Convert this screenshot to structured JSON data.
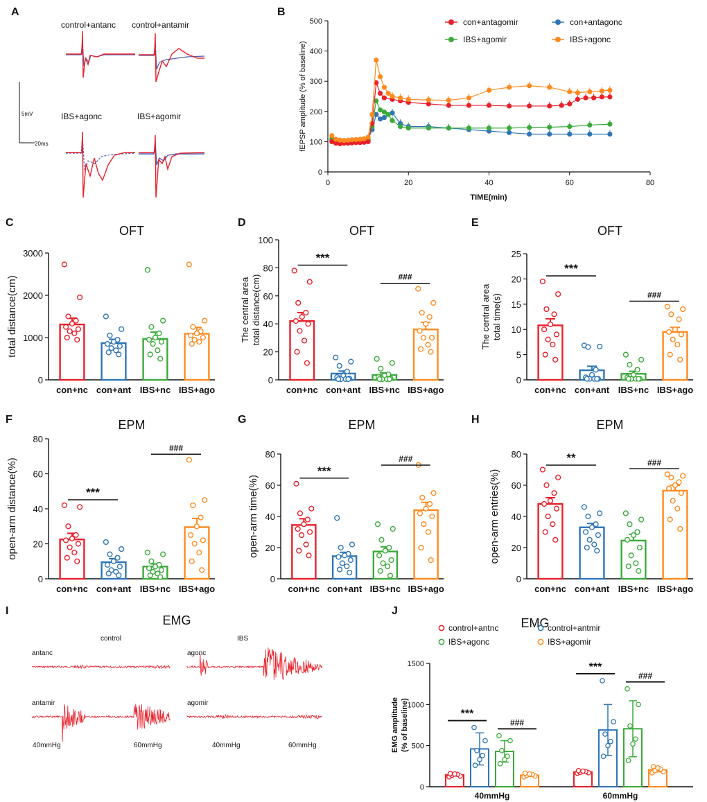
{
  "colors": {
    "red": "#e8202a",
    "blue": "#2e75b6",
    "green": "#3aaa3a",
    "orange": "#ff8a1f",
    "black": "#111111",
    "trace_blue": "#4a5fb5"
  },
  "panel_labels": [
    "A",
    "B",
    "C",
    "D",
    "E",
    "F",
    "G",
    "H",
    "I",
    "J"
  ],
  "panel_a": {
    "labels": [
      "control+antanc",
      "control+antamir",
      "IBS+agonc",
      "IBS+agomir"
    ],
    "scalebar_v": "5mV",
    "scalebar_h": "20ms"
  },
  "panel_i": {
    "title": "EMG",
    "group_labels": [
      "control",
      "IBS"
    ],
    "trace_labels": [
      "antanc",
      "antamir",
      "agonc",
      "agomir"
    ],
    "pressure_labels": [
      "40mmHg",
      "60mmHg",
      "40mmHg",
      "60mmHg"
    ]
  },
  "chart_data": [
    {
      "id": "B",
      "type": "line",
      "title": "",
      "xlabel": "TIME(min)",
      "ylabel": "fEPSP amplitude (% of baseline)",
      "xlim": [
        0,
        80
      ],
      "ylim": [
        0,
        500
      ],
      "xticks": [
        0,
        20,
        40,
        60,
        80
      ],
      "yticks": [
        0,
        100,
        200,
        300,
        400,
        500
      ],
      "legend": [
        "con+antagomir",
        "con+antagonc",
        "IBS+agomir",
        "IBS+agonc"
      ],
      "series": [
        {
          "name": "con+antagomir",
          "color": "red",
          "x": [
            1,
            2,
            3,
            4,
            5,
            6,
            7,
            8,
            9,
            10,
            11,
            12,
            13,
            14,
            16,
            18,
            20,
            25,
            30,
            35,
            40,
            45,
            50,
            55,
            58,
            60,
            62,
            64,
            66,
            68,
            70
          ],
          "y": [
            100,
            95,
            93,
            95,
            95,
            96,
            97,
            97,
            98,
            100,
            160,
            295,
            260,
            245,
            240,
            235,
            230,
            225,
            220,
            220,
            220,
            218,
            218,
            218,
            220,
            225,
            240,
            245,
            245,
            248,
            248
          ]
        },
        {
          "name": "con+antagonc",
          "color": "blue",
          "x": [
            1,
            2,
            3,
            4,
            5,
            6,
            7,
            8,
            9,
            10,
            11,
            12,
            13,
            14,
            15,
            16,
            18,
            20,
            25,
            30,
            35,
            40,
            45,
            50,
            55,
            60,
            65,
            70
          ],
          "y": [
            105,
            100,
            100,
            100,
            102,
            103,
            103,
            103,
            105,
            107,
            140,
            190,
            175,
            180,
            190,
            195,
            160,
            150,
            150,
            145,
            140,
            135,
            130,
            125,
            125,
            125,
            125,
            125
          ]
        },
        {
          "name": "IBS+agomir",
          "color": "green",
          "x": [
            1,
            2,
            3,
            4,
            5,
            6,
            7,
            8,
            9,
            10,
            11,
            12,
            13,
            14,
            15,
            16,
            18,
            20,
            25,
            30,
            35,
            40,
            45,
            50,
            55,
            60,
            65,
            70
          ],
          "y": [
            110,
            105,
            103,
            103,
            104,
            104,
            104,
            104,
            104,
            105,
            150,
            235,
            205,
            198,
            190,
            170,
            150,
            145,
            145,
            145,
            145,
            145,
            145,
            147,
            148,
            150,
            155,
            158
          ]
        },
        {
          "name": "IBS+agonc",
          "color": "orange",
          "x": [
            1,
            2,
            3,
            4,
            5,
            6,
            7,
            8,
            9,
            10,
            11,
            12,
            13,
            14,
            15,
            16,
            18,
            20,
            25,
            30,
            35,
            40,
            45,
            50,
            55,
            60,
            62,
            65,
            68,
            70
          ],
          "y": [
            120,
            108,
            105,
            104,
            105,
            106,
            107,
            108,
            110,
            115,
            190,
            370,
            315,
            280,
            260,
            250,
            245,
            240,
            238,
            237,
            245,
            270,
            280,
            285,
            280,
            265,
            262,
            265,
            268,
            270
          ]
        }
      ]
    },
    {
      "id": "C",
      "type": "bar",
      "title": "OFT",
      "ylabel": "total distance(cm)",
      "ylim": [
        0,
        3000
      ],
      "yticks": [
        0,
        1000,
        2000,
        3000
      ],
      "categories": [
        "con+nc",
        "con+ant",
        "IBS+nc",
        "IBS+ago"
      ],
      "values": [
        1310,
        870,
        970,
        1090
      ],
      "errors": [
        150,
        90,
        160,
        150
      ],
      "points": [
        [
          2730,
          1950,
          1500,
          1400,
          1330,
          1250,
          1200,
          1150,
          1100,
          1000,
          950
        ],
        [
          1500,
          1200,
          1050,
          950,
          900,
          850,
          800,
          750,
          700,
          650,
          600
        ],
        [
          2600,
          1400,
          1250,
          1100,
          1000,
          950,
          900,
          850,
          700,
          600,
          500
        ],
        [
          2730,
          1400,
          1250,
          1150,
          1100,
          1050,
          1000,
          950,
          900,
          850
        ]
      ],
      "annotations": []
    },
    {
      "id": "D",
      "type": "bar",
      "title": "OFT",
      "ylabel": "The central area total distance(cm)",
      "ylim": [
        0,
        100
      ],
      "yticks": [
        0,
        20,
        40,
        60,
        80,
        100
      ],
      "categories": [
        "con+nc",
        "con+ant",
        "IBS+nc",
        "IBS+ago"
      ],
      "values": [
        42,
        4.5,
        3.5,
        36
      ],
      "errors": [
        6,
        1.8,
        1.5,
        5
      ],
      "points": [
        [
          78,
          70,
          55,
          48,
          45,
          42,
          40,
          35,
          28,
          20,
          12
        ],
        [
          16,
          13,
          10,
          6,
          3,
          2,
          1,
          0.5,
          0.5,
          0.5,
          0.5
        ],
        [
          15,
          12,
          8,
          4,
          3,
          2,
          1,
          0.5,
          0.5,
          0.5,
          0.5
        ],
        [
          65,
          55,
          48,
          45,
          40,
          35,
          30,
          30,
          25,
          22,
          20
        ]
      ],
      "annotations": [
        {
          "from": 0,
          "to": 1,
          "text": "***"
        },
        {
          "from": 2,
          "to": 3,
          "text": "###"
        }
      ]
    },
    {
      "id": "E",
      "type": "bar",
      "title": "OFT",
      "ylabel": "The central area total time(s)",
      "ylim": [
        0,
        25
      ],
      "yticks": [
        0,
        5,
        10,
        15,
        20,
        25
      ],
      "categories": [
        "con+nc",
        "con+ant",
        "IBS+nc",
        "IBS+ago"
      ],
      "values": [
        10.8,
        1.9,
        1.2,
        9.5
      ],
      "errors": [
        1.3,
        0.8,
        0.5,
        0.9
      ],
      "points": [
        [
          19.5,
          17,
          14,
          13,
          11,
          10,
          9,
          8,
          7,
          5,
          4
        ],
        [
          6.8,
          6.6,
          6.5,
          2,
          1,
          0.5,
          0.2,
          0.2,
          0.2,
          0.2,
          0.2
        ],
        [
          5,
          4,
          3,
          2,
          1,
          0.5,
          0.2,
          0.2,
          0.2,
          0.2,
          0.2
        ],
        [
          14.5,
          14,
          13,
          12,
          10,
          9.5,
          9,
          8,
          7,
          5,
          4
        ]
      ],
      "annotations": [
        {
          "from": 0,
          "to": 1,
          "text": "***"
        },
        {
          "from": 2,
          "to": 3,
          "text": "###"
        }
      ]
    },
    {
      "id": "F",
      "type": "bar",
      "title": "EPM",
      "ylabel": "open-arm distance(%)",
      "ylim": [
        0,
        80
      ],
      "yticks": [
        0,
        20,
        40,
        60,
        80
      ],
      "categories": [
        "con+nc",
        "con+ant",
        "IBS+nc",
        "IBS+ago"
      ],
      "values": [
        22.5,
        9.5,
        7,
        29.5
      ],
      "errors": [
        3.5,
        2,
        1.5,
        5
      ],
      "points": [
        [
          42,
          41,
          30,
          25,
          23,
          22,
          20,
          18,
          15,
          12,
          10
        ],
        [
          21,
          17,
          14,
          12,
          10,
          8,
          7,
          5,
          4,
          3,
          2
        ],
        [
          15,
          14,
          10,
          8,
          7,
          6,
          5,
          4,
          3,
          2,
          1
        ],
        [
          68,
          45,
          42,
          35,
          30,
          25,
          22,
          20,
          15,
          10,
          5
        ]
      ],
      "annotations": [
        {
          "from": 0,
          "to": 1,
          "text": "***"
        },
        {
          "from": 2,
          "to": 3,
          "text": "###"
        }
      ]
    },
    {
      "id": "G",
      "type": "bar",
      "title": "EPM",
      "ylabel": "open-arm time(%)",
      "ylim": [
        0,
        80
      ],
      "yticks": [
        0,
        20,
        40,
        60,
        80
      ],
      "categories": [
        "con+nc",
        "con+ant",
        "IBS+nc",
        "IBS+ago"
      ],
      "values": [
        34.5,
        14.5,
        17.5,
        44
      ],
      "errors": [
        4,
        2.5,
        3,
        5
      ],
      "points": [
        [
          61,
          45,
          42,
          38,
          35,
          32,
          30,
          28,
          22,
          18,
          15
        ],
        [
          39,
          22,
          20,
          16,
          15,
          14,
          12,
          10,
          8,
          6,
          4
        ],
        [
          35,
          32,
          25,
          20,
          18,
          15,
          12,
          10,
          8,
          5,
          2
        ],
        [
          73,
          55,
          52,
          48,
          45,
          42,
          40,
          35,
          30,
          20,
          12
        ]
      ],
      "annotations": [
        {
          "from": 0,
          "to": 1,
          "text": "***"
        },
        {
          "from": 2,
          "to": 3,
          "text": "###"
        }
      ]
    },
    {
      "id": "H",
      "type": "bar",
      "title": "EPM",
      "ylabel": "open-arm entries(%)",
      "ylim": [
        0,
        80
      ],
      "yticks": [
        0,
        20,
        40,
        60,
        80
      ],
      "categories": [
        "con+nc",
        "con+ant",
        "IBS+nc",
        "IBS+ago"
      ],
      "values": [
        48,
        33,
        24.5,
        56.5
      ],
      "errors": [
        4,
        2.5,
        4,
        3.5
      ],
      "points": [
        [
          70,
          65,
          60,
          55,
          50,
          48,
          45,
          40,
          35,
          30,
          25
        ],
        [
          46,
          42,
          40,
          35,
          33,
          30,
          28,
          25,
          22,
          20,
          18
        ],
        [
          42,
          38,
          35,
          30,
          28,
          25,
          20,
          15,
          10,
          8,
          5
        ],
        [
          67,
          66,
          65,
          62,
          60,
          58,
          55,
          50,
          45,
          38,
          32
        ]
      ],
      "annotations": [
        {
          "from": 0,
          "to": 1,
          "text": "**"
        },
        {
          "from": 2,
          "to": 3,
          "text": "###"
        }
      ]
    },
    {
      "id": "J",
      "type": "bar",
      "title": "EMG",
      "ylabel": "EMG amplitude (% of baseline)",
      "ylim": [
        0,
        1500
      ],
      "yticks": [
        0,
        500,
        1000,
        1500
      ],
      "categories": [
        "40mmHg",
        "60mmHg"
      ],
      "legend": [
        "control+antnc",
        "control+antmir",
        "IBS+agonc",
        "IBS+agomir"
      ],
      "series": [
        {
          "name": "control+antnc",
          "color": "red",
          "values": [
            145,
            180
          ],
          "errors": [
            15,
            15
          ],
          "points": [
            [
              120,
              130,
              140,
              150,
              155,
              160
            ],
            [
              165,
              170,
              175,
              185,
              190,
              195
            ]
          ]
        },
        {
          "name": "control+antmir",
          "color": "blue",
          "values": [
            460,
            690
          ],
          "errors": [
            195,
            310
          ],
          "points": [
            [
              720,
              560,
              440,
              380,
              330,
              260
            ],
            [
              1290,
              790,
              640,
              550,
              500,
              370
            ]
          ]
        },
        {
          "name": "IBS+agonc",
          "color": "green",
          "values": [
            430,
            705
          ],
          "errors": [
            130,
            340
          ],
          "points": [
            [
              620,
              560,
              440,
              370,
              330,
              280
            ],
            [
              1190,
              1000,
              740,
              580,
              520,
              320
            ]
          ]
        },
        {
          "name": "IBS+agomir",
          "color": "orange",
          "values": [
            140,
            205
          ],
          "errors": [
            15,
            25
          ],
          "points": [
            [
              120,
              130,
              140,
              150,
              155,
              165
            ],
            [
              170,
              185,
              195,
              215,
              230,
              245
            ]
          ]
        }
      ],
      "annotations": [
        {
          "group": 0,
          "from": 0,
          "to": 1,
          "text": "***"
        },
        {
          "group": 0,
          "from": 2,
          "to": 3,
          "text": "###"
        },
        {
          "group": 1,
          "from": 0,
          "to": 1,
          "text": "***"
        },
        {
          "group": 1,
          "from": 2,
          "to": 3,
          "text": "###"
        }
      ]
    }
  ]
}
